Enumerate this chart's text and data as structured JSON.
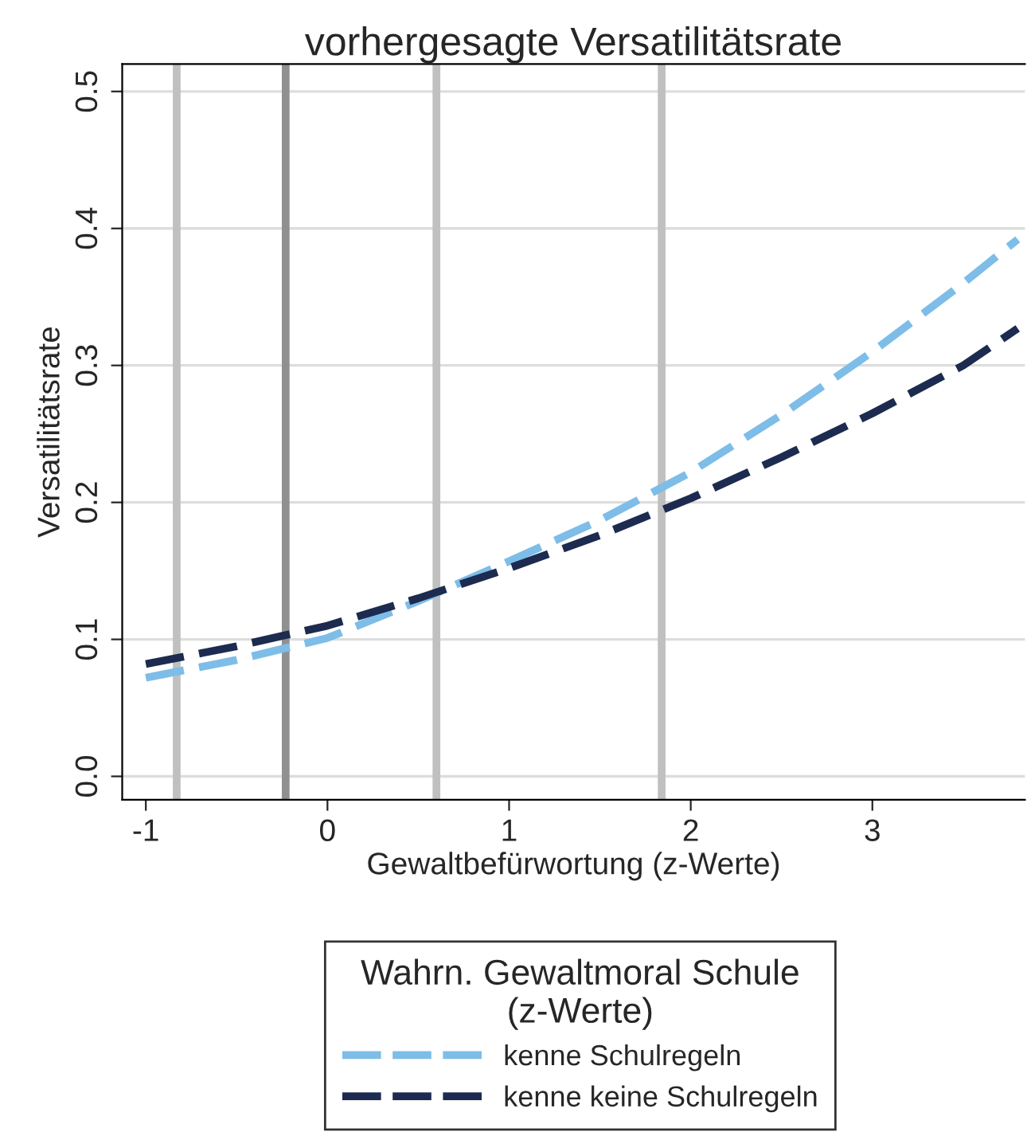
{
  "chart_data": {
    "type": "line",
    "title": "vorhergesagte Versatilitätsrate",
    "xlabel": "Gewaltbefürwortung (z-Werte)",
    "ylabel": "Versatilitätsrate",
    "legend_title": "Wahrn. Gewaltmoral Schule\n(z-Werte)",
    "x": [
      -1,
      -0.5,
      0,
      0.5,
      1,
      1.5,
      2,
      2.5,
      3,
      3.5,
      3.8
    ],
    "series": [
      {
        "name": "kenne Schulregeln",
        "color": "#7dbde8",
        "values": [
          0.072,
          0.085,
          0.101,
          0.128,
          0.157,
          0.187,
          0.222,
          0.264,
          0.31,
          0.36,
          0.392
        ]
      },
      {
        "name": "kenne keine Schulregeln",
        "color": "#1c2b4f",
        "values": [
          0.082,
          0.095,
          0.11,
          0.13,
          0.152,
          0.176,
          0.203,
          0.233,
          0.265,
          0.3,
          0.327
        ]
      }
    ],
    "xlim": [
      -1.13,
      3.84
    ],
    "ylim": [
      -0.017,
      0.52
    ],
    "xticks": [
      -1,
      0,
      1,
      2,
      3
    ],
    "yticks": [
      {
        "value": 0,
        "label": "0.0"
      },
      0.1,
      0.2,
      0.3,
      0.4,
      0.5
    ],
    "ref_lines": [
      {
        "axis": "x",
        "value": -0.83,
        "color": "#c0c0c0"
      },
      {
        "axis": "x",
        "value": -0.23,
        "color": "#909090"
      },
      {
        "axis": "x",
        "value": 0.6,
        "color": "#c0c0c0"
      },
      {
        "axis": "x",
        "value": 1.84,
        "color": "#c0c0c0"
      }
    ],
    "grid": "y",
    "legend": "bottom",
    "line_style": "dashed"
  }
}
